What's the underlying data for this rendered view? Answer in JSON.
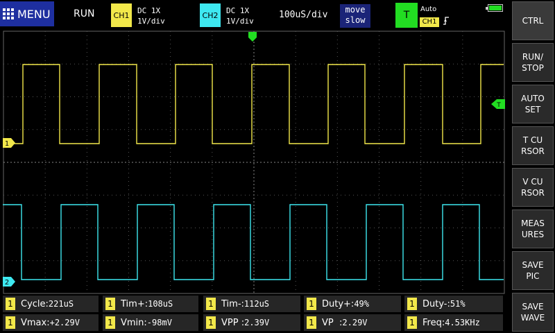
{
  "topbar": {
    "menu_label": "MENU",
    "run_status": "RUN",
    "ch1": {
      "tag": "CH1",
      "coupling": "DC  1X",
      "scale": "1V/div",
      "color": "#f2e84a"
    },
    "ch2": {
      "tag": "CH2",
      "coupling": "DC  1X",
      "scale": "1V/div",
      "color": "#3ee8f0"
    },
    "timebase": "100uS/div",
    "move": {
      "line1": "move",
      "line2": "slow"
    },
    "trigger": {
      "label": "T",
      "mode": "Auto",
      "source": "CH1",
      "edge_icon": "rising-edge-icon",
      "color": "#22dd22"
    },
    "battery_icon": "battery-icon"
  },
  "scope": {
    "ch1_marker": "1",
    "ch2_marker": "2",
    "trigger_marker": "T"
  },
  "sidebar": [
    {
      "label": "CTRL"
    },
    {
      "label": "RUN/\nSTOP"
    },
    {
      "label": "AUTO\nSET"
    },
    {
      "label": "T CU\nRSOR"
    },
    {
      "label": "V CU\nRSOR"
    },
    {
      "label": "MEAS\nURES"
    },
    {
      "label": "SAVE\nPIC"
    },
    {
      "label": "SAVE\nWAVE"
    }
  ],
  "measurements": {
    "row1": [
      {
        "ch": "1",
        "label": "Cycle:",
        "value": "221uS"
      },
      {
        "ch": "1",
        "label": "Tim+:",
        "value": "108uS"
      },
      {
        "ch": "1",
        "label": "Tim-:",
        "value": "112uS"
      },
      {
        "ch": "1",
        "label": "Duty+:",
        "value": "49%"
      },
      {
        "ch": "1",
        "label": "Duty-:",
        "value": "51%"
      }
    ],
    "row2": [
      {
        "ch": "1",
        "label": "Vmax:",
        "value": "+2.29V"
      },
      {
        "ch": "1",
        "label": "Vmin:",
        "value": "-98mV"
      },
      {
        "ch": "1",
        "label": "VPP :",
        "value": "2.39V"
      },
      {
        "ch": "1",
        "label": "VP  :",
        "value": "2.29V"
      },
      {
        "ch": "1",
        "label": "Freq:",
        "value": "4.53KHz"
      }
    ]
  }
}
